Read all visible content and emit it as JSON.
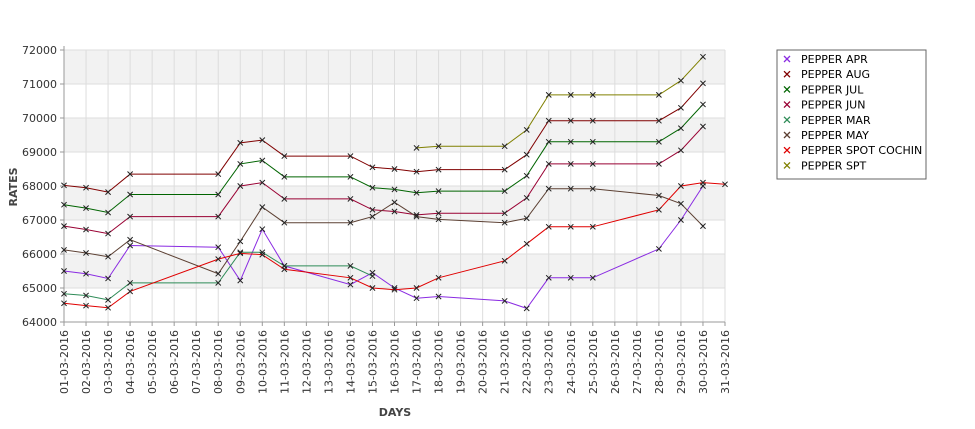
{
  "chart_data": {
    "type": "line",
    "xlabel": "DAYS",
    "ylabel": "RATES",
    "ylim": [
      64000,
      72000
    ],
    "y_ticks": [
      64000,
      65000,
      66000,
      67000,
      68000,
      69000,
      70000,
      71000,
      72000
    ],
    "grid": true,
    "legend_position": "right",
    "categories": [
      "01-03-2016",
      "02-03-2016",
      "03-03-2016",
      "04-03-2016",
      "05-03-2016",
      "06-03-2016",
      "07-03-2016",
      "08-03-2016",
      "09-03-2016",
      "10-03-2016",
      "11-03-2016",
      "12-03-2016",
      "13-03-2016",
      "14-03-2016",
      "15-03-2016",
      "16-03-2016",
      "17-03-2016",
      "18-03-2016",
      "19-03-2016",
      "20-03-2016",
      "21-03-2016",
      "22-03-2016",
      "23-03-2016",
      "24-03-2016",
      "25-03-2016",
      "26-03-2016",
      "27-03-2016",
      "28-03-2016",
      "29-03-2016",
      "30-03-2016",
      "31-03-2016"
    ],
    "series": [
      {
        "name": "PEPPER APR",
        "color": "#8a2be2",
        "values": [
          65500,
          65420,
          65280,
          66250,
          null,
          null,
          null,
          66200,
          65220,
          66730,
          65650,
          null,
          null,
          65100,
          65450,
          65000,
          64700,
          64750,
          null,
          null,
          64620,
          64400,
          65300,
          65300,
          65300,
          null,
          null,
          66150,
          67000,
          68000,
          null
        ]
      },
      {
        "name": "PEPPER AUG",
        "color": "#800000",
        "values": [
          68020,
          67950,
          67820,
          68350,
          null,
          null,
          null,
          68350,
          69270,
          69350,
          68880,
          null,
          null,
          68880,
          68550,
          68500,
          68420,
          68480,
          null,
          null,
          68480,
          68920,
          69920,
          69920,
          69920,
          null,
          null,
          69920,
          70300,
          71020,
          null
        ]
      },
      {
        "name": "PEPPER JUL",
        "color": "#006400",
        "values": [
          67450,
          67350,
          67220,
          67750,
          null,
          null,
          null,
          67750,
          68650,
          68750,
          68270,
          null,
          null,
          68270,
          67950,
          67900,
          67800,
          67850,
          null,
          null,
          67850,
          68300,
          69300,
          69300,
          69300,
          null,
          null,
          69300,
          69700,
          70400,
          null
        ]
      },
      {
        "name": "PEPPER JUN",
        "color": "#990033",
        "values": [
          66820,
          66720,
          66600,
          67100,
          null,
          null,
          null,
          67100,
          68000,
          68100,
          67620,
          null,
          null,
          67620,
          67300,
          67250,
          67150,
          67200,
          null,
          null,
          67200,
          67650,
          68650,
          68650,
          68650,
          null,
          null,
          68650,
          69050,
          69750,
          null
        ]
      },
      {
        "name": "PEPPER MAR",
        "color": "#2e8b57",
        "values": [
          64830,
          64780,
          64650,
          65150,
          null,
          null,
          null,
          65150,
          66050,
          66050,
          65650,
          null,
          null,
          65650,
          65350,
          null,
          null,
          null,
          null,
          null,
          null,
          null,
          null,
          null,
          null,
          null,
          null,
          null,
          null,
          null,
          null
        ]
      },
      {
        "name": "PEPPER MAY",
        "color": "#5c4033",
        "values": [
          66120,
          66030,
          65920,
          66420,
          null,
          null,
          null,
          65420,
          66370,
          67380,
          66920,
          null,
          null,
          66920,
          67100,
          67520,
          67100,
          67020,
          null,
          null,
          66920,
          67050,
          67920,
          67920,
          67920,
          null,
          null,
          67720,
          67480,
          66820,
          null
        ]
      },
      {
        "name": "PEPPER SPOT COCHIN",
        "color": "#e00000",
        "values": [
          64550,
          64480,
          64420,
          64900,
          null,
          null,
          null,
          65850,
          66020,
          65980,
          65550,
          null,
          null,
          65300,
          65000,
          64950,
          65000,
          65300,
          null,
          null,
          65800,
          66300,
          66800,
          66800,
          66800,
          null,
          null,
          67300,
          68000,
          68100,
          68050
        ]
      },
      {
        "name": "PEPPER SPT",
        "color": "#808000",
        "values": [
          null,
          null,
          null,
          null,
          null,
          null,
          null,
          null,
          null,
          null,
          null,
          null,
          null,
          null,
          null,
          null,
          69120,
          69170,
          null,
          null,
          69170,
          69650,
          70680,
          70680,
          70680,
          null,
          null,
          70680,
          71100,
          71800,
          null
        ]
      }
    ]
  }
}
